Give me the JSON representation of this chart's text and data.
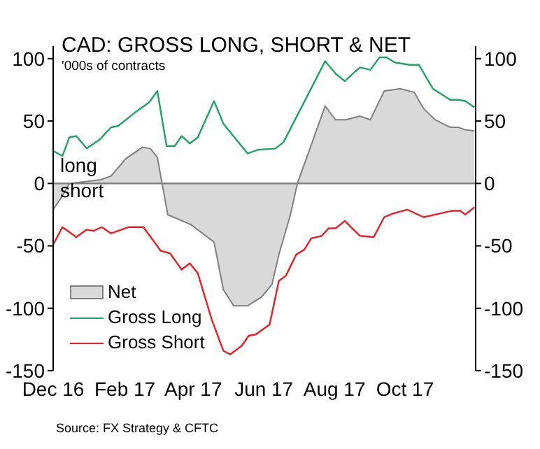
{
  "chart_data": {
    "type": "area",
    "title": "CAD: GROSS LONG, SHORT & NET",
    "subtitle": "'000s of contracts",
    "annotations": [
      "long",
      "short",
      "Source: FX Strategy & CFTC"
    ],
    "series": [
      {
        "name": "Net",
        "color": "#808080",
        "x": [
          "2016-12-01",
          "2016-12-09",
          "2016-12-15",
          "2017-01-11",
          "2017-01-20",
          "2017-02-02",
          "2017-02-16",
          "2017-02-23",
          "2017-03-01",
          "2017-03-10",
          "2017-03-30",
          "2017-04-19",
          "2017-04-27",
          "2017-05-06",
          "2017-05-18",
          "2017-05-30",
          "2017-06-08",
          "2017-06-14",
          "2017-06-24",
          "2017-06-30",
          "2017-07-24",
          "2017-08-02",
          "2017-08-11",
          "2017-08-23",
          "2017-09-01",
          "2017-09-13",
          "2017-09-27",
          "2017-10-09",
          "2017-10-17",
          "2017-10-27",
          "2017-11-09",
          "2017-11-16",
          "2017-11-22",
          "2017-11-30"
        ],
        "values": [
          -21,
          -10,
          0,
          3,
          6,
          20,
          29,
          28,
          21,
          -25,
          -33,
          -47,
          -85,
          -98,
          -98,
          -91,
          -81,
          -57,
          -25,
          0,
          62,
          51,
          51,
          54,
          51,
          74,
          76,
          73,
          60,
          51,
          45,
          45,
          43,
          42
        ]
      },
      {
        "name": "Gross Long",
        "type": "line",
        "color": "#1fa463",
        "x": [
          "2016-12-01",
          "2016-12-09",
          "2016-12-15",
          "2016-12-21",
          "2016-12-30",
          "2017-01-10",
          "2017-01-20",
          "2017-01-26",
          "2017-02-10",
          "2017-02-22",
          "2017-03-01",
          "2017-03-09",
          "2017-03-16",
          "2017-03-22",
          "2017-03-29",
          "2017-04-05",
          "2017-04-19",
          "2017-04-27",
          "2017-05-18",
          "2017-05-27",
          "2017-06-11",
          "2017-06-18",
          "2017-07-24",
          "2017-08-02",
          "2017-08-10",
          "2017-08-23",
          "2017-09-01",
          "2017-09-09",
          "2017-09-15",
          "2017-09-22",
          "2017-10-05",
          "2017-10-13",
          "2017-10-25",
          "2017-11-09",
          "2017-11-16",
          "2017-11-22",
          "2017-11-30"
        ],
        "values": [
          26,
          22,
          37,
          38,
          28,
          35,
          45,
          46,
          57,
          65,
          74,
          30,
          30,
          38,
          32,
          37,
          66,
          48,
          24,
          27,
          28,
          33,
          98,
          88,
          82,
          93,
          91,
          101,
          101,
          97,
          95,
          95,
          76,
          67,
          67,
          66,
          61
        ]
      },
      {
        "name": "Gross Short",
        "type": "line",
        "color": "#ee1c25",
        "x": [
          "2016-12-01",
          "2016-12-09",
          "2016-12-21",
          "2016-12-30",
          "2017-01-05",
          "2017-01-12",
          "2017-01-20",
          "2017-02-04",
          "2017-02-17",
          "2017-03-04",
          "2017-03-12",
          "2017-03-22",
          "2017-03-29",
          "2017-04-05",
          "2017-04-17",
          "2017-04-27",
          "2017-05-03",
          "2017-05-13",
          "2017-05-19",
          "2017-05-25",
          "2017-06-06",
          "2017-06-14",
          "2017-06-20",
          "2017-06-29",
          "2017-07-06",
          "2017-07-12",
          "2017-07-21",
          "2017-07-27",
          "2017-08-02",
          "2017-08-10",
          "2017-08-23",
          "2017-09-04",
          "2017-09-13",
          "2017-09-21",
          "2017-10-03",
          "2017-10-17",
          "2017-10-27",
          "2017-11-10",
          "2017-11-18",
          "2017-11-22",
          "2017-11-30"
        ],
        "values": [
          -49,
          -35,
          -43,
          -37,
          -38,
          -35,
          -40,
          -35,
          -35,
          -54,
          -56,
          -69,
          -64,
          -72,
          -109,
          -134,
          -137,
          -130,
          -122,
          -121,
          -113,
          -78,
          -74,
          -57,
          -53,
          -44,
          -42,
          -36,
          -36,
          -30,
          -42,
          -43,
          -27,
          -24,
          -21,
          -27,
          -25,
          -22,
          -22,
          -25,
          -19
        ]
      }
    ],
    "xlim": [
      "2016-12-01",
      "2017-12-01"
    ],
    "xticks": [
      {
        "value": "2016-12-01",
        "label": "Dec 16"
      },
      {
        "value": "2017-02-01",
        "label": "Feb 17"
      },
      {
        "value": "2017-04-01",
        "label": "Apr 17"
      },
      {
        "value": "2017-06-01",
        "label": "Jun 17"
      },
      {
        "value": "2017-08-01",
        "label": "Aug 17"
      },
      {
        "value": "2017-10-01",
        "label": "Oct 17"
      }
    ],
    "ylim": [
      -150,
      110
    ],
    "yticks": [
      -150,
      -100,
      -50,
      0,
      50,
      100
    ],
    "y2lim": [
      -150,
      110
    ],
    "y2ticks": [
      -150,
      -100,
      -50,
      0,
      50,
      100
    ],
    "ref_lines": [
      {
        "axis": "y",
        "value": 0,
        "color": "#808080"
      }
    ],
    "legend": "bottom left"
  }
}
